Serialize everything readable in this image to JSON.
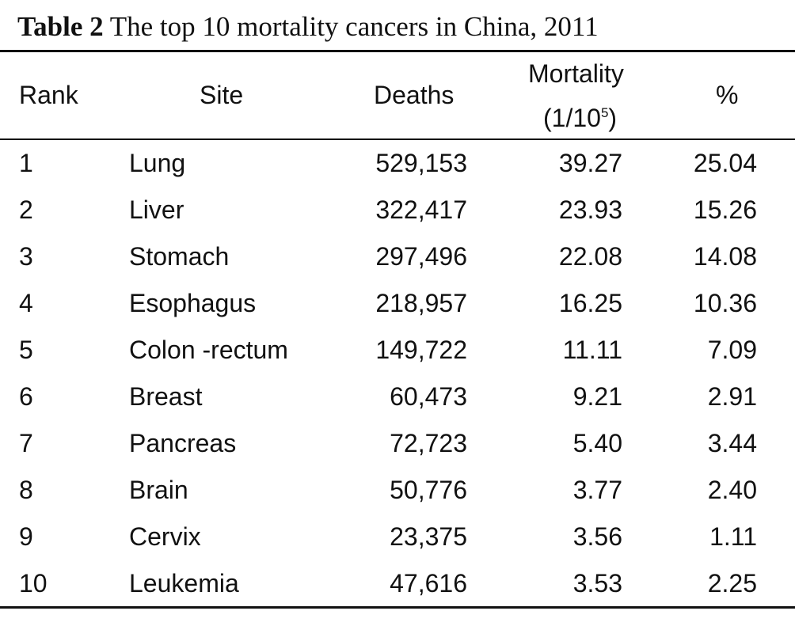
{
  "caption": {
    "label": "Table 2",
    "text": "The top 10 mortality cancers in China, 2011"
  },
  "headers": {
    "rank": "Rank",
    "site": "Site",
    "deaths": "Deaths",
    "mortality_line1": "Mortality",
    "mortality_line2_prefix": "(1/10",
    "mortality_line2_sup": "5",
    "mortality_line2_suffix": ")",
    "percent": "%"
  },
  "rows": [
    {
      "rank": "1",
      "site": "Lung",
      "deaths": "529,153",
      "mortality": "39.27",
      "percent": "25.04"
    },
    {
      "rank": "2",
      "site": "Liver",
      "deaths": "322,417",
      "mortality": "23.93",
      "percent": "15.26"
    },
    {
      "rank": "3",
      "site": "Stomach",
      "deaths": "297,496",
      "mortality": "22.08",
      "percent": "14.08"
    },
    {
      "rank": "4",
      "site": "Esophagus",
      "deaths": "218,957",
      "mortality": "16.25",
      "percent": "10.36"
    },
    {
      "rank": "5",
      "site": "Colon -rectum",
      "deaths": "149,722",
      "mortality": "11.11",
      "percent": "7.09"
    },
    {
      "rank": "6",
      "site": "Breast",
      "deaths": "60,473",
      "mortality": "9.21",
      "percent": "2.91"
    },
    {
      "rank": "7",
      "site": "Pancreas",
      "deaths": "72,723",
      "mortality": "5.40",
      "percent": "3.44"
    },
    {
      "rank": "8",
      "site": "Brain",
      "deaths": "50,776",
      "mortality": "3.77",
      "percent": "2.40"
    },
    {
      "rank": "9",
      "site": "Cervix",
      "deaths": "23,375",
      "mortality": "3.56",
      "percent": "1.11"
    },
    {
      "rank": "10",
      "site": "Leukemia",
      "deaths": "47,616",
      "mortality": "3.53",
      "percent": "2.25"
    }
  ]
}
